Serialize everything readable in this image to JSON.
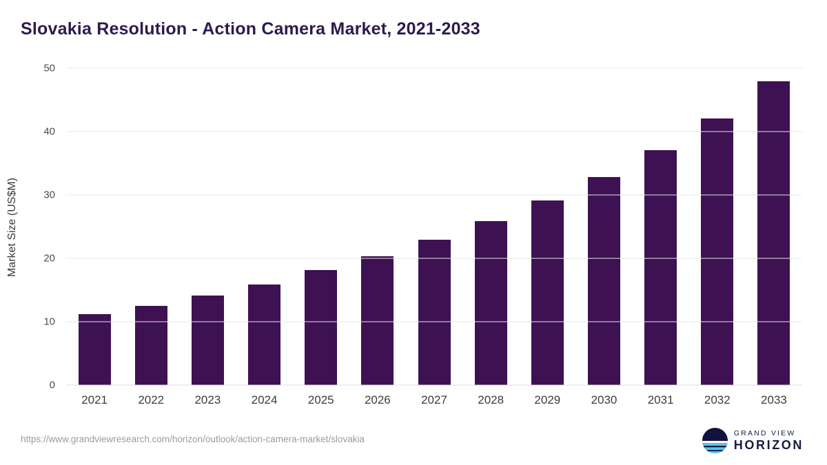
{
  "chart_data": {
    "type": "bar",
    "title": "Slovakia Resolution - Action Camera Market, 2021-2033",
    "xlabel": "",
    "ylabel": "Market Size (US$M)",
    "categories": [
      "2021",
      "2022",
      "2023",
      "2024",
      "2025",
      "2026",
      "2027",
      "2028",
      "2029",
      "2030",
      "2031",
      "2032",
      "2033"
    ],
    "values": [
      11.2,
      12.5,
      14.1,
      15.9,
      18.1,
      20.3,
      22.9,
      25.9,
      29.1,
      32.8,
      37.1,
      42.1,
      47.9
    ],
    "ylim": [
      0,
      50
    ],
    "yticks": [
      0,
      10,
      20,
      30,
      40,
      50
    ],
    "grid": true,
    "legend": "none",
    "bar_color": "#3d1152"
  },
  "footer": {
    "source_url": "https://www.grandviewresearch.com/horizon/outlook/action-camera-market/slovakia",
    "logo_line1": "GRAND VIEW",
    "logo_line2": "HORIZON"
  },
  "colors": {
    "title": "#2e1a4d",
    "bar": "#3d1152",
    "gridline": "#e7e7e7",
    "logo_navy": "#171c3f",
    "logo_blue": "#57c7ea"
  }
}
